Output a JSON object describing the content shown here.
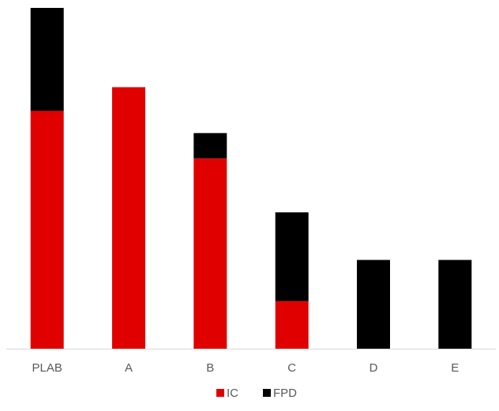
{
  "chart_data": {
    "type": "bar",
    "stacked": true,
    "categories": [
      "PLAB",
      "A",
      "B",
      "C",
      "D",
      "E"
    ],
    "series": [
      {
        "name": "IC",
        "color": "#e00000",
        "values": [
          300,
          330,
          240,
          60,
          0,
          0
        ]
      },
      {
        "name": "FPD",
        "color": "#000000",
        "values": [
          130,
          0,
          32,
          112,
          112,
          112
        ]
      }
    ],
    "ylim": [
      0,
      430
    ],
    "grid": false,
    "y_axis_visible": false,
    "legend": "bottom-center",
    "axis_color": "#d9d9d9",
    "label_color": "#595959"
  }
}
